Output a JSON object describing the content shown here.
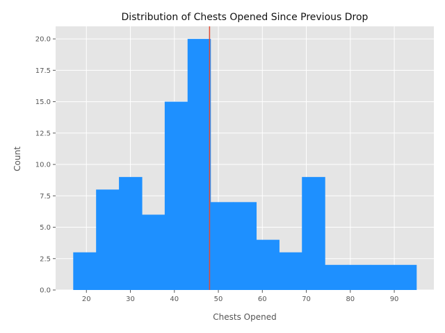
{
  "chart_data": {
    "type": "bar",
    "title": "Distribution of Chests Opened Since Previous Drop",
    "xlabel": "Chests Opened",
    "ylabel": "Count",
    "xlim": [
      13,
      99
    ],
    "ylim": [
      0,
      21
    ],
    "x_ticks": [
      20,
      30,
      40,
      50,
      60,
      70,
      80,
      90
    ],
    "y_ticks": [
      0.0,
      2.5,
      5.0,
      7.5,
      10.0,
      12.5,
      15.0,
      17.5,
      20.0
    ],
    "y_tick_labels": [
      "0.0",
      "2.5",
      "5.0",
      "7.5",
      "10.0",
      "12.5",
      "15.0",
      "17.5",
      "20.0"
    ],
    "grid": true,
    "bins": [
      {
        "start": 17.0,
        "end": 22.2,
        "count": 3
      },
      {
        "start": 22.2,
        "end": 27.4,
        "count": 8
      },
      {
        "start": 27.4,
        "end": 32.6,
        "count": 9
      },
      {
        "start": 32.6,
        "end": 37.8,
        "count": 6
      },
      {
        "start": 37.8,
        "end": 43.0,
        "count": 15
      },
      {
        "start": 43.0,
        "end": 48.2,
        "count": 20
      },
      {
        "start": 48.2,
        "end": 53.4,
        "count": 7
      },
      {
        "start": 53.4,
        "end": 58.6,
        "count": 7
      },
      {
        "start": 58.6,
        "end": 63.8,
        "count": 4
      },
      {
        "start": 63.8,
        "end": 69.0,
        "count": 3
      },
      {
        "start": 69.0,
        "end": 74.2,
        "count": 9
      },
      {
        "start": 74.2,
        "end": 79.4,
        "count": 2
      },
      {
        "start": 79.4,
        "end": 84.6,
        "count": 2
      },
      {
        "start": 84.6,
        "end": 89.8,
        "count": 2
      },
      {
        "start": 89.8,
        "end": 95.0,
        "count": 2
      }
    ],
    "reference_line_x": 48.0,
    "colors": {
      "bar": "#1e90ff",
      "reference_line": "#e24a33",
      "plot_background": "#e5e5e5",
      "grid": "#ffffff"
    }
  }
}
